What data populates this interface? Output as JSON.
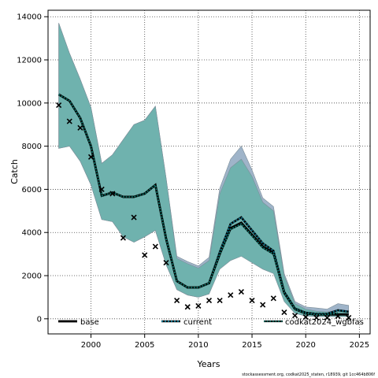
{
  "chart_data": {
    "type": "line",
    "xlabel": "Years",
    "ylabel": "Catch",
    "xlim": [
      1996,
      2026
    ],
    "ylim": [
      -700,
      14300
    ],
    "x_ticks": [
      2000,
      2005,
      2010,
      2015,
      2020,
      2025
    ],
    "y_ticks": [
      0,
      2000,
      4000,
      6000,
      8000,
      10000,
      12000,
      14000
    ],
    "grid": true,
    "legend_position": "bottom",
    "footnote": "stockassessment.org, codkat2025_staten, r18939, git 1cc464b806f",
    "colors": {
      "band_current": "#9fb4c9",
      "band_base": "#6fb2ae",
      "band_edge": "#7d8e99",
      "line": "#000000",
      "dot_current": "#0d6f88",
      "dot_codkat": "#0c7b6f",
      "obs": "#000000"
    },
    "series": [
      {
        "name": "base",
        "x": [
          1997,
          1998,
          1999,
          2000,
          2001,
          2002,
          2003,
          2004,
          2005,
          2006,
          2007,
          2008,
          2009,
          2010,
          2011,
          2012,
          2013,
          2014,
          2015,
          2016,
          2017,
          2018,
          2019,
          2020,
          2021,
          2022,
          2023,
          2024
        ],
        "y": [
          10400,
          10100,
          9300,
          8000,
          5700,
          5850,
          5650,
          5650,
          5800,
          6200,
          3700,
          1750,
          1450,
          1450,
          1650,
          3000,
          4200,
          4450,
          3900,
          3350,
          3050,
          1200,
          450,
          250,
          200,
          200,
          200,
          200
        ],
        "lower": [
          7900,
          8000,
          7300,
          6200,
          4600,
          4500,
          3800,
          3550,
          3800,
          4100,
          2500,
          1350,
          1100,
          1000,
          1150,
          2300,
          2700,
          2900,
          2600,
          2300,
          2100,
          800,
          250,
          130,
          100,
          100,
          100,
          100
        ],
        "upper": [
          13700,
          12300,
          11100,
          9800,
          7200,
          7600,
          8300,
          9000,
          9200,
          9850,
          6500,
          2800,
          2550,
          2350,
          2700,
          5800,
          7000,
          7400,
          6600,
          5400,
          5000,
          2000,
          700,
          450,
          350,
          320,
          400,
          320
        ]
      },
      {
        "name": "current",
        "x": [
          1997,
          1998,
          1999,
          2000,
          2001,
          2002,
          2003,
          2004,
          2005,
          2006,
          2007,
          2008,
          2009,
          2010,
          2011,
          2012,
          2013,
          2014,
          2015,
          2016,
          2017,
          2018,
          2019,
          2020,
          2021,
          2022,
          2023,
          2024
        ],
        "y": [
          10400,
          10100,
          9300,
          8000,
          5700,
          5850,
          5650,
          5650,
          5800,
          6200,
          3700,
          1750,
          1450,
          1450,
          1650,
          3100,
          4400,
          4700,
          4100,
          3500,
          3150,
          1250,
          480,
          280,
          230,
          230,
          400,
          330
        ],
        "lower": [
          7900,
          8000,
          7300,
          6200,
          4600,
          4500,
          3800,
          3550,
          3800,
          4100,
          2500,
          1350,
          1100,
          1000,
          1150,
          2400,
          2800,
          3050,
          2750,
          2400,
          2200,
          850,
          270,
          150,
          110,
          110,
          150,
          120
        ],
        "upper": [
          13700,
          12300,
          11100,
          9800,
          7200,
          7600,
          8300,
          9000,
          9200,
          9850,
          6500,
          2900,
          2650,
          2450,
          2850,
          6050,
          7400,
          8000,
          6900,
          5600,
          5200,
          2100,
          800,
          550,
          500,
          450,
          700,
          620
        ]
      },
      {
        "name": "codkat2024_wgbfas",
        "x": [
          1997,
          1998,
          1999,
          2000,
          2001,
          2002,
          2003,
          2004,
          2005,
          2006,
          2007,
          2008,
          2009,
          2010,
          2011,
          2012,
          2013,
          2014,
          2015,
          2016,
          2017,
          2018,
          2019,
          2020,
          2021,
          2022,
          2023
        ],
        "y": [
          10400,
          10100,
          9300,
          8000,
          5700,
          5850,
          5650,
          5650,
          5800,
          6200,
          3700,
          1750,
          1450,
          1450,
          1650,
          3000,
          4150,
          4400,
          3850,
          3300,
          3000,
          1200,
          450,
          250,
          200,
          200,
          250
        ]
      }
    ],
    "observed": {
      "x": [
        1997,
        1998,
        1999,
        2000,
        2001,
        2002,
        2003,
        2004,
        2005,
        2006,
        2007,
        2008,
        2009,
        2010,
        2011,
        2012,
        2013,
        2014,
        2015,
        2016,
        2017,
        2018,
        2019,
        2020,
        2021,
        2022,
        2023,
        2024
      ],
      "y": [
        9900,
        9150,
        8850,
        7500,
        6000,
        5800,
        3750,
        4700,
        2950,
        3350,
        2600,
        850,
        550,
        600,
        850,
        850,
        1100,
        1250,
        850,
        650,
        950,
        300,
        150,
        80,
        50,
        50,
        120,
        50
      ]
    }
  }
}
